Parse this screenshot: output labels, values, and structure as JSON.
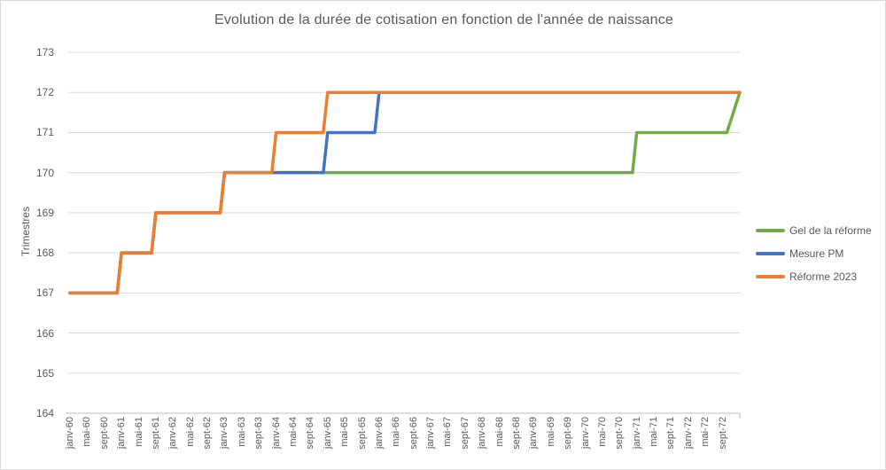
{
  "chart_data": {
    "type": "line",
    "title": "Evolution de la durée de cotisation en fonction de l'année de naissance",
    "ylabel": "Trimestres",
    "ylim": [
      164,
      173
    ],
    "y_ticks": [
      164,
      165,
      166,
      167,
      168,
      169,
      170,
      171,
      172,
      173
    ],
    "grid": true,
    "legend_position": "right",
    "x_axis_note": "months from janv-1960 (m=0) to janv-1973 (m=156), labels every 4 months",
    "x_total_months": 156,
    "x_tick_interval_months": 4,
    "x_tick_labels": [
      "janv-60",
      "mai-60",
      "sept-60",
      "janv-61",
      "mai-61",
      "sept-61",
      "janv-62",
      "mai-62",
      "sept-62",
      "janv-63",
      "mai-63",
      "sept-63",
      "janv-64",
      "mai-64",
      "sept-64",
      "janv-65",
      "mai-65",
      "sept-65",
      "janv-66",
      "mai-66",
      "sept-66",
      "janv-67",
      "mai-67",
      "sept-67",
      "janv-68",
      "mai-68",
      "sept-68",
      "janv-69",
      "mai-69",
      "sept-69",
      "janv-70",
      "mai-70",
      "sept-70",
      "janv-71",
      "mai-71",
      "sept-71",
      "janv-72",
      "mai-72",
      "sept-72"
    ],
    "series": [
      {
        "name": "Gel de la réforme",
        "color": "#70AD47",
        "points_month_value": [
          [
            0,
            167
          ],
          [
            11,
            167
          ],
          [
            12,
            168
          ],
          [
            19,
            168
          ],
          [
            20,
            169
          ],
          [
            35,
            169
          ],
          [
            36,
            170
          ],
          [
            131,
            170
          ],
          [
            132,
            171
          ],
          [
            153,
            171
          ],
          [
            156,
            172
          ]
        ]
      },
      {
        "name": "Mesure PM",
        "color": "#4472C4",
        "points_month_value": [
          [
            0,
            167
          ],
          [
            11,
            167
          ],
          [
            12,
            168
          ],
          [
            19,
            168
          ],
          [
            20,
            169
          ],
          [
            35,
            169
          ],
          [
            36,
            170
          ],
          [
            59,
            170
          ],
          [
            60,
            171
          ],
          [
            71,
            171
          ],
          [
            72,
            172
          ],
          [
            156,
            172
          ]
        ]
      },
      {
        "name": "Réforme 2023",
        "color": "#ED7D31",
        "points_month_value": [
          [
            0,
            167
          ],
          [
            11,
            167
          ],
          [
            12,
            168
          ],
          [
            19,
            168
          ],
          [
            20,
            169
          ],
          [
            35,
            169
          ],
          [
            36,
            170
          ],
          [
            47,
            170
          ],
          [
            48,
            171
          ],
          [
            59,
            171
          ],
          [
            60,
            172
          ],
          [
            156,
            172
          ]
        ]
      }
    ],
    "colors": {
      "gridline": "#D9D9D9",
      "axis_line": "#BFBFBF",
      "tick_text": "#595959",
      "title_text": "#595959"
    }
  }
}
